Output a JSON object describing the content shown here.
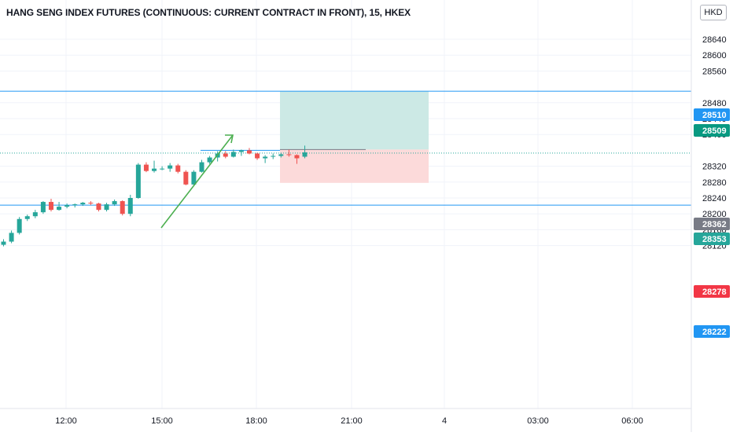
{
  "header": {
    "title": "HANG SENG INDEX FUTURES (CONTINUOUS: CURRENT CONTRACT IN FRONT), 15, HKEX",
    "currency_button": "HKD"
  },
  "colors": {
    "up": "#26a69a",
    "down": "#ef5350",
    "hline": "#2196f3",
    "arrow": "#4caf50",
    "profit_zone": "#cce9e5",
    "loss_zone": "#fcdada",
    "badge_blue": "#2196f3",
    "badge_green": "#089981",
    "badge_gray": "#787b86",
    "badge_teal": "#26a69a",
    "badge_red": "#f23645"
  },
  "chart_data": {
    "type": "candlestick",
    "ylim": [
      28110,
      28690
    ],
    "y_ticks": [
      "28640",
      "28600",
      "28560",
      "28480",
      "28440",
      "28400",
      "28320",
      "28280",
      "28240",
      "28200",
      "28160",
      "28120"
    ],
    "x_ticks": [
      "12:00",
      "15:00",
      "18:00",
      "21:00",
      "4",
      "03:00",
      "06:00"
    ],
    "candles": [
      {
        "o": 28122,
        "h": 28136,
        "l": 28118,
        "c": 28130
      },
      {
        "o": 28130,
        "h": 28158,
        "l": 28126,
        "c": 28152
      },
      {
        "o": 28152,
        "h": 28192,
        "l": 28148,
        "c": 28187
      },
      {
        "o": 28187,
        "h": 28198,
        "l": 28182,
        "c": 28194
      },
      {
        "o": 28194,
        "h": 28210,
        "l": 28189,
        "c": 28204
      },
      {
        "o": 28204,
        "h": 28232,
        "l": 28200,
        "c": 28230
      },
      {
        "o": 28230,
        "h": 28238,
        "l": 28206,
        "c": 28210
      },
      {
        "o": 28210,
        "h": 28230,
        "l": 28208,
        "c": 28218
      },
      {
        "o": 28218,
        "h": 28226,
        "l": 28214,
        "c": 28222
      },
      {
        "o": 28222,
        "h": 28226,
        "l": 28216,
        "c": 28224
      },
      {
        "o": 28224,
        "h": 28230,
        "l": 28220,
        "c": 28228
      },
      {
        "o": 28228,
        "h": 28232,
        "l": 28222,
        "c": 28226
      },
      {
        "o": 28226,
        "h": 28228,
        "l": 28206,
        "c": 28210
      },
      {
        "o": 28210,
        "h": 28228,
        "l": 28206,
        "c": 28224
      },
      {
        "o": 28224,
        "h": 28236,
        "l": 28220,
        "c": 28232
      },
      {
        "o": 28232,
        "h": 28234,
        "l": 28196,
        "c": 28200
      },
      {
        "o": 28200,
        "h": 28248,
        "l": 28194,
        "c": 28240
      },
      {
        "o": 28240,
        "h": 28328,
        "l": 28238,
        "c": 28324
      },
      {
        "o": 28324,
        "h": 28330,
        "l": 28305,
        "c": 28308
      },
      {
        "o": 28308,
        "h": 28334,
        "l": 28304,
        "c": 28314
      },
      {
        "o": 28314,
        "h": 28320,
        "l": 28310,
        "c": 28314
      },
      {
        "o": 28314,
        "h": 28328,
        "l": 28306,
        "c": 28322
      },
      {
        "o": 28322,
        "h": 28326,
        "l": 28302,
        "c": 28306
      },
      {
        "o": 28306,
        "h": 28310,
        "l": 28272,
        "c": 28274
      },
      {
        "o": 28274,
        "h": 28310,
        "l": 28272,
        "c": 28306
      },
      {
        "o": 28306,
        "h": 28336,
        "l": 28304,
        "c": 28330
      },
      {
        "o": 28330,
        "h": 28346,
        "l": 28326,
        "c": 28342
      },
      {
        "o": 28342,
        "h": 28358,
        "l": 28332,
        "c": 28352
      },
      {
        "o": 28352,
        "h": 28358,
        "l": 28340,
        "c": 28344
      },
      {
        "o": 28344,
        "h": 28362,
        "l": 28342,
        "c": 28356
      },
      {
        "o": 28356,
        "h": 28362,
        "l": 28346,
        "c": 28360
      },
      {
        "o": 28360,
        "h": 28366,
        "l": 28350,
        "c": 28352
      },
      {
        "o": 28352,
        "h": 28354,
        "l": 28336,
        "c": 28340
      },
      {
        "o": 28340,
        "h": 28348,
        "l": 28328,
        "c": 28344
      },
      {
        "o": 28344,
        "h": 28352,
        "l": 28338,
        "c": 28346
      },
      {
        "o": 28346,
        "h": 28354,
        "l": 28342,
        "c": 28350
      },
      {
        "o": 28350,
        "h": 28362,
        "l": 28344,
        "c": 28348
      },
      {
        "o": 28348,
        "h": 28350,
        "l": 28326,
        "c": 28340
      },
      {
        "o": 28344,
        "h": 28372,
        "l": 28340,
        "c": 28355
      }
    ],
    "horizontal_lines": [
      28509,
      28222
    ],
    "current_price_line": 28353,
    "position": {
      "entry": 28362,
      "target": 28509,
      "stop": 28278
    },
    "price_labels": [
      "28510",
      "28509",
      "28362",
      "28353",
      "28278",
      "28222"
    ]
  }
}
